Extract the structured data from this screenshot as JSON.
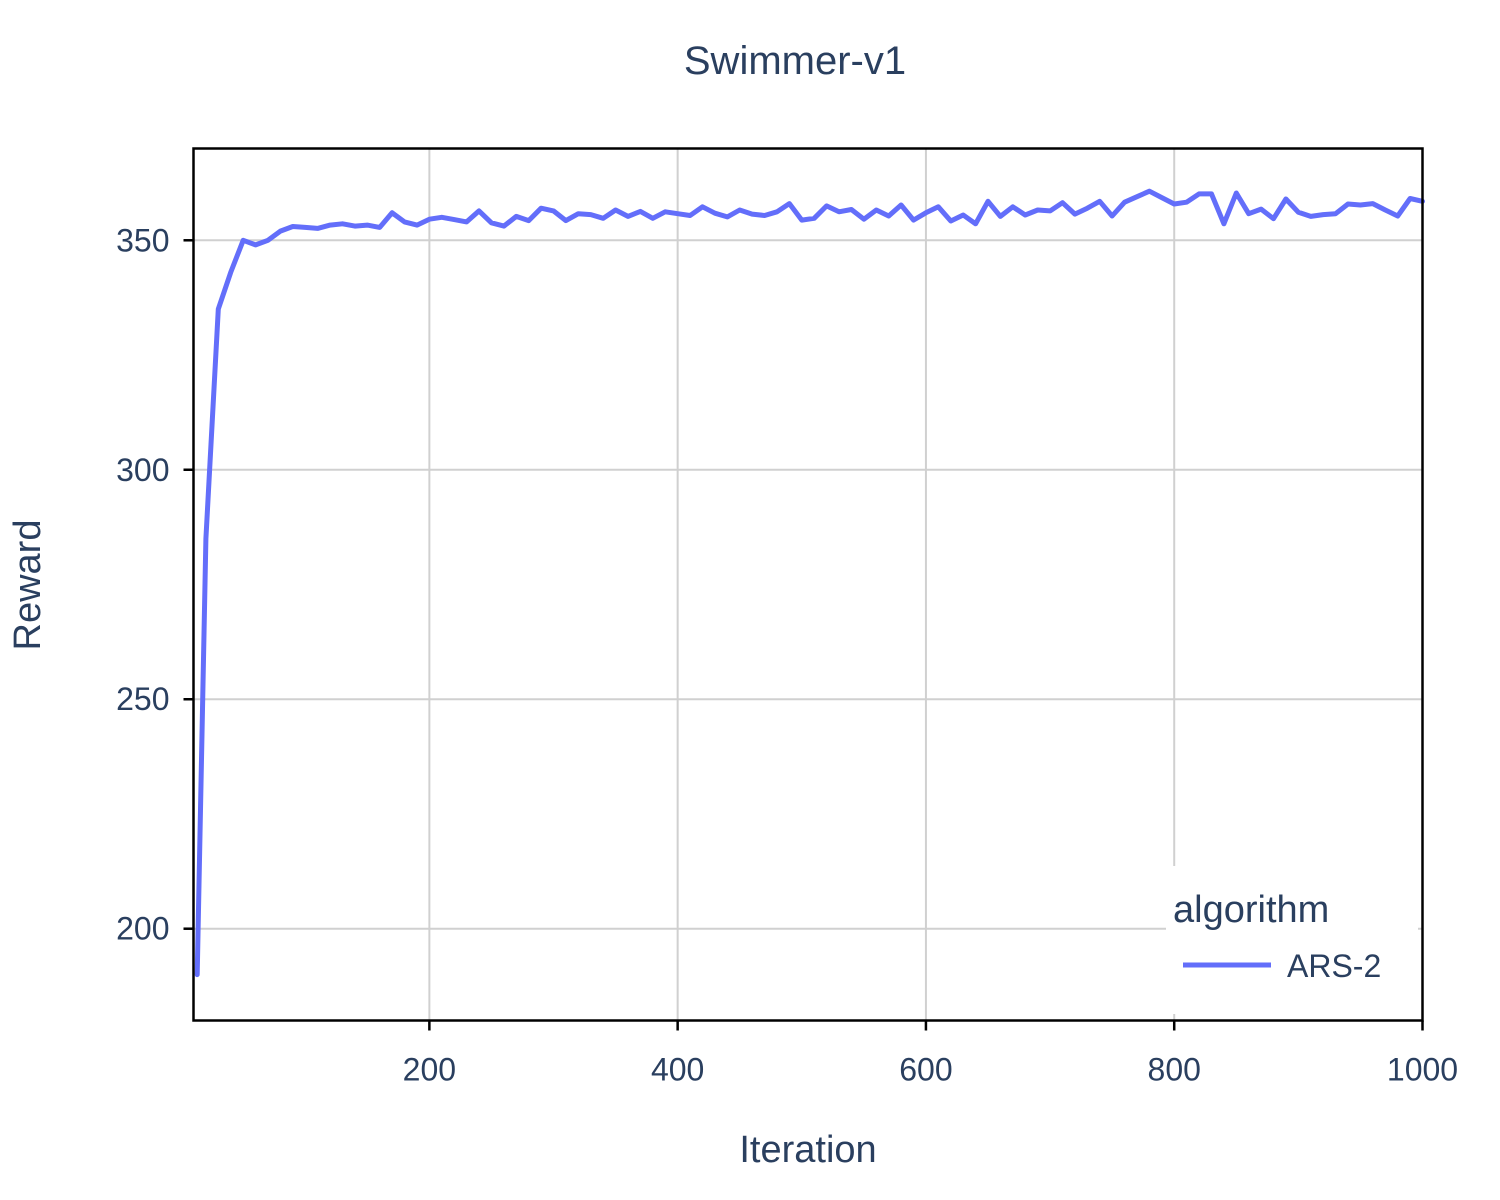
{
  "chart_data": {
    "type": "line",
    "title": "Swimmer-v1",
    "xlabel": "Iteration",
    "ylabel": "Reward",
    "xlim": [
      10,
      1000
    ],
    "ylim": [
      180,
      370
    ],
    "xticks": [
      200,
      400,
      600,
      800,
      1000
    ],
    "yticks": [
      200,
      250,
      300,
      350
    ],
    "grid": true,
    "legend": {
      "title": "algorithm",
      "placement": "bottom-right"
    },
    "series": [
      {
        "name": "ARS-2",
        "color": "#636efa",
        "x": [
          13,
          20,
          30,
          40,
          50,
          60,
          70,
          80,
          90,
          100,
          110,
          120,
          130,
          140,
          150,
          160,
          170,
          180,
          190,
          200,
          210,
          220,
          230,
          240,
          250,
          260,
          270,
          280,
          290,
          300,
          310,
          320,
          330,
          340,
          350,
          360,
          370,
          380,
          390,
          400,
          410,
          420,
          430,
          440,
          450,
          460,
          470,
          480,
          490,
          500,
          510,
          520,
          530,
          540,
          550,
          560,
          570,
          580,
          590,
          600,
          610,
          620,
          630,
          640,
          650,
          660,
          670,
          680,
          690,
          700,
          710,
          720,
          730,
          740,
          750,
          760,
          770,
          780,
          790,
          800,
          810,
          820,
          830,
          840,
          850,
          860,
          870,
          880,
          890,
          900,
          910,
          920,
          930,
          940,
          950,
          960,
          970,
          980,
          990,
          1000
        ],
        "y": [
          190,
          285,
          335,
          343,
          350,
          349,
          350,
          352,
          353,
          352.8,
          352.6,
          353.3,
          353.6,
          353.1,
          353.3,
          352.8,
          356,
          354,
          353.3,
          354.6,
          355,
          354.5,
          354,
          356.4,
          353.8,
          353.1,
          355.2,
          354.3,
          357,
          356.4,
          354.3,
          355.8,
          355.6,
          354.8,
          356.6,
          355.2,
          356.3,
          354.8,
          356.2,
          355.8,
          355.4,
          357.3,
          355.9,
          355.1,
          356.6,
          355.7,
          355.4,
          356.2,
          358,
          354.4,
          354.8,
          357.5,
          356.2,
          356.7,
          354.6,
          356.6,
          355.3,
          357.7,
          354.4,
          356,
          357.3,
          354.2,
          355.5,
          353.6,
          358.5,
          355.2,
          357.3,
          355.5,
          356.6,
          356.4,
          358.2,
          355.7,
          357,
          358.5,
          355.3,
          358.3,
          359.5,
          360.7,
          359.3,
          357.9,
          358.3,
          360.1,
          360.1,
          353.6,
          360.3,
          355.8,
          356.8,
          354.7,
          359,
          356.1,
          355.2,
          355.6,
          355.8,
          357.9,
          357.7,
          358,
          356.6,
          355.3,
          359.1,
          358.5
        ]
      }
    ]
  }
}
